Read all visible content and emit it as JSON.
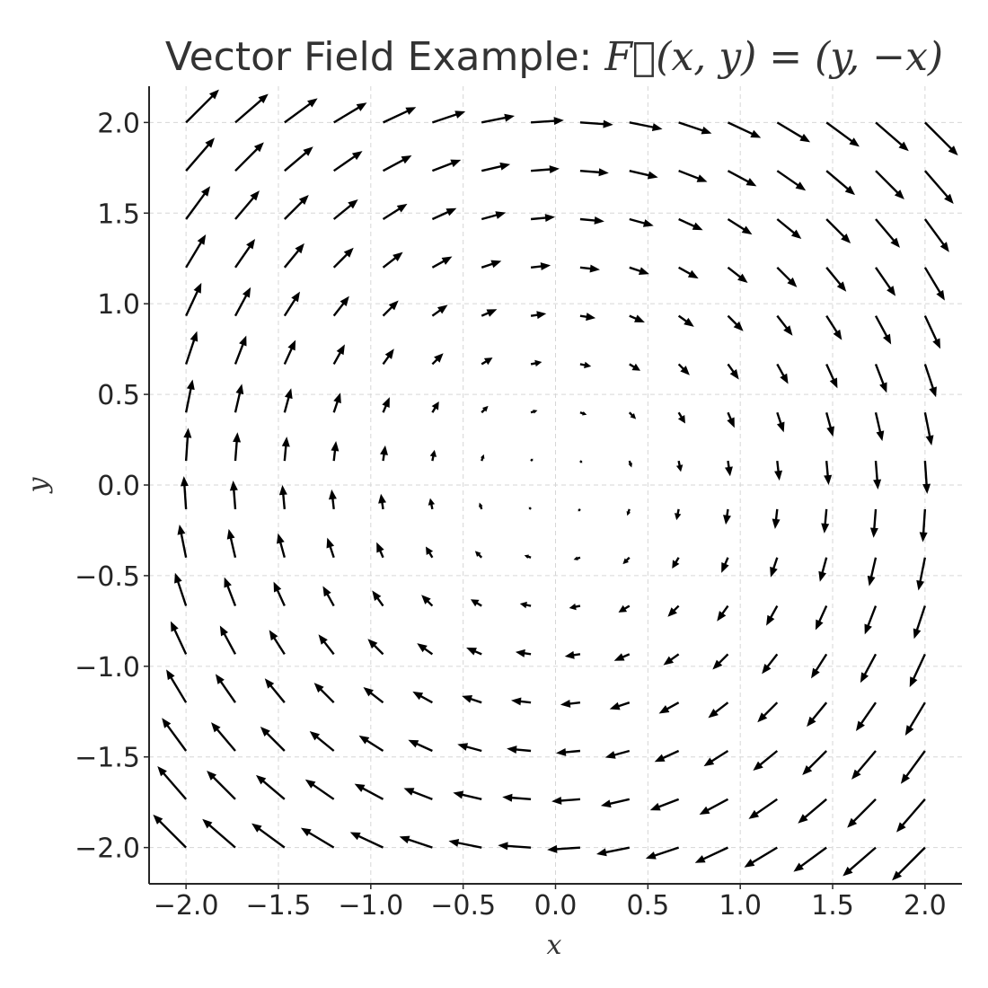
{
  "chart_data": {
    "type": "quiver",
    "title_text": "Vector Field Example: ",
    "title_math": "F⃗(x, y) = (y, −x)",
    "xlabel": "x",
    "ylabel": "y",
    "field": {
      "u": "y",
      "v": "-x"
    },
    "grid_x": {
      "start": -2,
      "stop": 2,
      "count": 16
    },
    "grid_y": {
      "start": -2,
      "stop": 2,
      "count": 16
    },
    "xlim": [
      -2.2,
      2.2
    ],
    "ylim": [
      -2.2,
      2.2
    ],
    "xticks": [
      -2.0,
      -1.5,
      -1.0,
      -0.5,
      0.0,
      0.5,
      1.0,
      1.5,
      2.0
    ],
    "yticks": [
      -2.0,
      -1.5,
      -1.0,
      -0.5,
      0.0,
      0.5,
      1.0,
      1.5,
      2.0
    ],
    "xtick_labels": [
      "−2.0",
      "−1.5",
      "−1.0",
      "−0.5",
      "0.0",
      "0.5",
      "1.0",
      "1.5",
      "2.0"
    ],
    "ytick_labels": [
      "−2.0",
      "−1.5",
      "−1.0",
      "−0.5",
      "0.0",
      "0.5",
      "1.0",
      "1.5",
      "2.0"
    ],
    "grid": true,
    "arrow_color": "#000000"
  }
}
